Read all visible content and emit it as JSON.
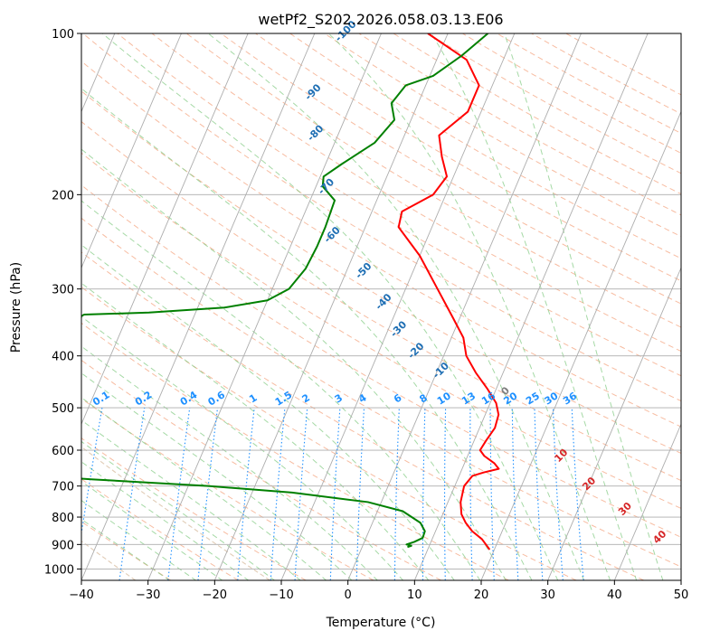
{
  "chart_data": {
    "type": "line",
    "subtype": "skew-t log-p diagram",
    "title": "wetPf2_S202.2026.058.03.13.E06",
    "xlabel": "Temperature (°C)",
    "ylabel": "Pressure (hPa)",
    "xlim": [
      -40,
      50
    ],
    "ylim": [
      1050,
      100
    ],
    "y_scale": "log",
    "x_ticks": [
      -40,
      -30,
      -20,
      -10,
      0,
      10,
      20,
      30,
      40,
      50
    ],
    "x_tick_labels": [
      "−40",
      "−30",
      "−20",
      "−10",
      "0",
      "10",
      "20",
      "30",
      "40",
      "50"
    ],
    "y_ticks": [
      100,
      200,
      300,
      400,
      500,
      600,
      700,
      800,
      900,
      1000
    ],
    "y_tick_labels": [
      "100",
      "200",
      "300",
      "400",
      "500",
      "600",
      "700",
      "800",
      "900",
      "1000"
    ],
    "grid": true,
    "series": [
      {
        "color": "#ff0000",
        "points": [
          {
            "p": 920,
            "t": 19.3
          },
          {
            "p": 880,
            "t": 17.5
          },
          {
            "p": 850,
            "t": 15.5
          },
          {
            "p": 820,
            "t": 14.0
          },
          {
            "p": 790,
            "t": 12.8
          },
          {
            "p": 750,
            "t": 11.9
          },
          {
            "p": 700,
            "t": 11.4
          },
          {
            "p": 670,
            "t": 12.0
          },
          {
            "p": 660,
            "t": 13.5
          },
          {
            "p": 650,
            "t": 15.5
          },
          {
            "p": 635,
            "t": 14.5
          },
          {
            "p": 615,
            "t": 12.5
          },
          {
            "p": 600,
            "t": 11.5
          },
          {
            "p": 575,
            "t": 11.8
          },
          {
            "p": 545,
            "t": 12.3
          },
          {
            "p": 515,
            "t": 12.0
          },
          {
            "p": 490,
            "t": 10.9
          },
          {
            "p": 460,
            "t": 8.6
          },
          {
            "p": 430,
            "t": 5.9
          },
          {
            "p": 400,
            "t": 3.4
          },
          {
            "p": 370,
            "t": 1.8
          },
          {
            "p": 340,
            "t": -1.0
          },
          {
            "p": 300,
            "t": -5.2
          },
          {
            "p": 260,
            "t": -10.0
          },
          {
            "p": 230,
            "t": -15.0
          },
          {
            "p": 215,
            "t": -15.5
          },
          {
            "p": 200,
            "t": -11.9
          },
          {
            "p": 185,
            "t": -11.0
          },
          {
            "p": 170,
            "t": -13.0
          },
          {
            "p": 155,
            "t": -14.8
          },
          {
            "p": 140,
            "t": -12.0
          },
          {
            "p": 125,
            "t": -12.0
          },
          {
            "p": 112,
            "t": -15.5
          },
          {
            "p": 100,
            "t": -23.0
          }
        ]
      },
      {
        "color": "#008000",
        "points": [
          {
            "p": 910,
            "t": 6.8
          },
          {
            "p": 905,
            "t": 7.3
          },
          {
            "p": 900,
            "t": 6.5
          },
          {
            "p": 890,
            "t": 7.5
          },
          {
            "p": 875,
            "t": 8.5
          },
          {
            "p": 850,
            "t": 8.4
          },
          {
            "p": 820,
            "t": 7.2
          },
          {
            "p": 780,
            "t": 3.8
          },
          {
            "p": 750,
            "t": -2.0
          },
          {
            "p": 720,
            "t": -14.0
          },
          {
            "p": 700,
            "t": -27.0
          },
          {
            "p": 680,
            "t": -45.0
          },
          {
            "p": 660,
            "t": -60.0
          },
          {
            "p": 590,
            "t": -70.0
          },
          {
            "p": 560,
            "t": -68.2
          },
          {
            "p": 520,
            "t": -66.0
          },
          {
            "p": 470,
            "t": -63.8
          },
          {
            "p": 420,
            "t": -62.5
          },
          {
            "p": 380,
            "t": -61.0
          },
          {
            "p": 345,
            "t": -58.0
          },
          {
            "p": 335,
            "t": -56.6
          },
          {
            "p": 332,
            "t": -47.0
          },
          {
            "p": 325,
            "t": -36.0
          },
          {
            "p": 315,
            "t": -30.0
          },
          {
            "p": 300,
            "t": -27.5
          },
          {
            "p": 275,
            "t": -26.3
          },
          {
            "p": 250,
            "t": -26.0
          },
          {
            "p": 230,
            "t": -26.0
          },
          {
            "p": 205,
            "t": -26.3
          },
          {
            "p": 193,
            "t": -29.0
          },
          {
            "p": 185,
            "t": -29.5
          },
          {
            "p": 175,
            "t": -27.5
          },
          {
            "p": 160,
            "t": -24.0
          },
          {
            "p": 145,
            "t": -22.5
          },
          {
            "p": 135,
            "t": -24.0
          },
          {
            "p": 125,
            "t": -23.0
          },
          {
            "p": 120,
            "t": -19.5
          },
          {
            "p": 110,
            "t": -16.5
          },
          {
            "p": 100,
            "t": -14.0
          }
        ]
      }
    ],
    "reference_lines": {
      "dry_adiabat_labels": [
        "-100",
        "-90",
        "-80",
        "-70",
        "-60",
        "-50",
        "-40",
        "-30",
        "-20",
        "-10",
        "0"
      ],
      "moist_adiabat_labels": [
        "10",
        "20",
        "30",
        "40"
      ],
      "mixing_ratio_labels": [
        "0.1",
        "0.2",
        "0.4",
        "0.6",
        "1",
        "1.5",
        "2",
        "3",
        "4",
        "6",
        "8",
        "10",
        "13",
        "16",
        "20",
        "25",
        "30",
        "36"
      ]
    },
    "colors": {
      "isotherm": "#adadad",
      "isobar": "#adadad",
      "dry_adiabat": "#f4a582",
      "moist_adiabat": "#7fc97f",
      "mixing_ratio": "#1e90ff",
      "iso_accent": "#c9a37a"
    }
  }
}
